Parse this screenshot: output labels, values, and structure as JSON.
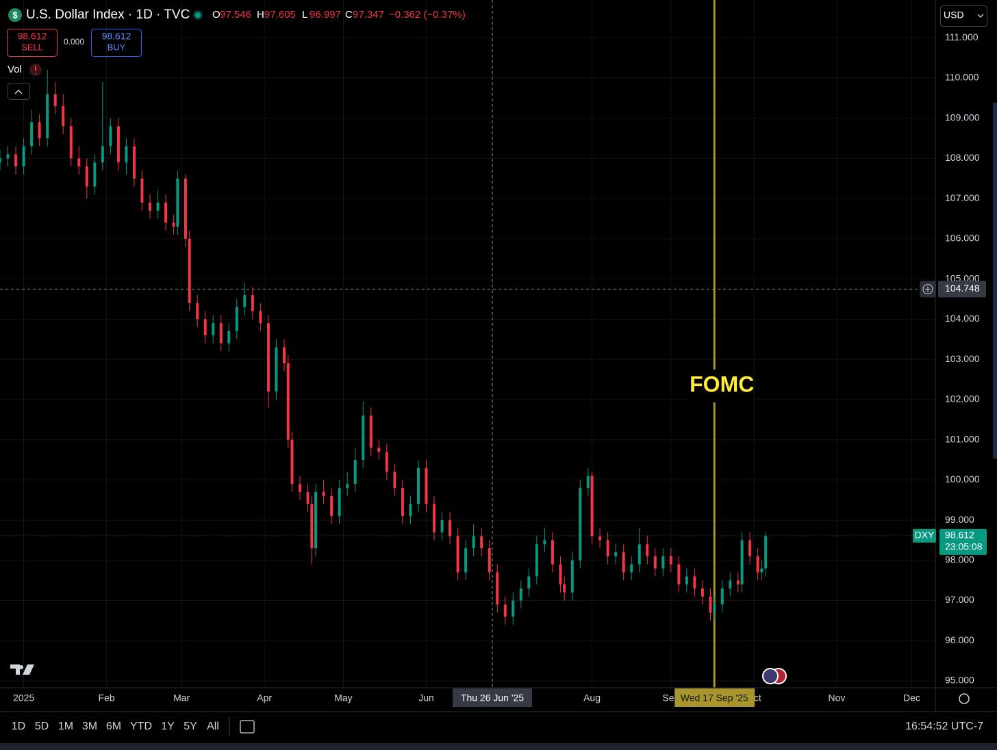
{
  "chart_data": {
    "type": "candlestick",
    "title": "U.S. Dollar Index · 1D · TVC",
    "symbol_icon": "$",
    "up_color": "#089981",
    "down_color": "#f23645",
    "grid": true,
    "xlim": [
      -6,
      231
    ],
    "ylim": [
      94.83,
      111.94
    ],
    "xticks": [
      {
        "value": 0,
        "label": "2025"
      },
      {
        "value": 21,
        "label": "Feb"
      },
      {
        "value": 40,
        "label": "Mar"
      },
      {
        "value": 61,
        "label": "Apr"
      },
      {
        "value": 81,
        "label": "May"
      },
      {
        "value": 102,
        "label": "Jun"
      },
      {
        "value": 144,
        "label": "Aug"
      },
      {
        "value": 164,
        "label": "Sep"
      },
      {
        "value": 185,
        "label": "Oct"
      },
      {
        "value": 206,
        "label": "Nov"
      },
      {
        "value": 225,
        "label": "Dec"
      }
    ],
    "yticks": [
      {
        "value": 95,
        "label": "95.000"
      },
      {
        "value": 96,
        "label": "96.000"
      },
      {
        "value": 97,
        "label": "97.000"
      },
      {
        "value": 98,
        "label": "98.000"
      },
      {
        "value": 99,
        "label": "99.000"
      },
      {
        "value": 100,
        "label": "100.000"
      },
      {
        "value": 101,
        "label": "101.000"
      },
      {
        "value": 102,
        "label": "102.000"
      },
      {
        "value": 103,
        "label": "103.000"
      },
      {
        "value": 104,
        "label": "104.000"
      },
      {
        "value": 105,
        "label": "105.000"
      },
      {
        "value": 106,
        "label": "106.000"
      },
      {
        "value": 107,
        "label": "107.000"
      },
      {
        "value": 108,
        "label": "108.000"
      },
      {
        "value": 109,
        "label": "109.000"
      },
      {
        "value": 110,
        "label": "110.000"
      },
      {
        "value": 111,
        "label": "111.000"
      }
    ],
    "x": [
      -6,
      -4,
      -2,
      0,
      2,
      4,
      6,
      8,
      10,
      12,
      14,
      16,
      18,
      20,
      22,
      24,
      26,
      28,
      30,
      32,
      34,
      36,
      38,
      39,
      41,
      42,
      44,
      46,
      48,
      50,
      52,
      54,
      56,
      58,
      60,
      62,
      64,
      66,
      67,
      68,
      70,
      72,
      73,
      74,
      76,
      78,
      80,
      82,
      84,
      86,
      88,
      90,
      92,
      94,
      96,
      98,
      100,
      102,
      104,
      106,
      108,
      110,
      112,
      114,
      116,
      118,
      120,
      122,
      124,
      126,
      128,
      130,
      132,
      134,
      136,
      137,
      139,
      141,
      143,
      144,
      146,
      148,
      150,
      152,
      154,
      156,
      158,
      160,
      162,
      164,
      166,
      168,
      170,
      172,
      174,
      175,
      177,
      179,
      181,
      182,
      184,
      186,
      187,
      188
    ],
    "open": [
      107.9,
      108.0,
      108.1,
      107.8,
      108.3,
      108.9,
      108.5,
      109.6,
      109.3,
      108.8,
      108.0,
      107.8,
      107.3,
      107.9,
      108.3,
      108.8,
      107.9,
      108.3,
      107.5,
      106.9,
      106.7,
      106.9,
      106.4,
      106.3,
      107.5,
      106.0,
      104.4,
      104.0,
      103.6,
      103.9,
      103.4,
      103.7,
      104.3,
      104.6,
      104.2,
      103.9,
      102.2,
      103.3,
      102.9,
      101.0,
      99.9,
      99.7,
      99.4,
      98.3,
      99.7,
      99.6,
      99.1,
      99.8,
      99.9,
      100.5,
      101.6,
      100.8,
      100.7,
      100.2,
      99.8,
      99.1,
      99.4,
      100.3,
      99.4,
      98.7,
      99.0,
      98.6,
      97.7,
      98.3,
      98.6,
      98.3,
      97.7,
      96.9,
      96.6,
      97.0,
      97.3,
      97.6,
      98.4,
      98.5,
      97.9,
      97.4,
      97.2,
      98.0,
      99.8,
      100.1,
      98.6,
      98.5,
      98.1,
      98.2,
      97.7,
      97.9,
      98.4,
      98.1,
      97.8,
      98.1,
      97.9,
      97.4,
      97.6,
      97.3,
      97.1,
      96.7,
      96.9,
      97.3,
      97.5,
      97.4,
      98.5,
      98.1,
      97.7,
      97.8
    ],
    "high": [
      108.2,
      108.3,
      108.3,
      108.5,
      109.2,
      109.1,
      110.2,
      109.9,
      109.6,
      109.0,
      108.3,
      108.0,
      108.1,
      109.9,
      109.0,
      109.0,
      108.5,
      108.5,
      107.7,
      107.1,
      107.2,
      107.1,
      106.6,
      107.7,
      107.6,
      106.2,
      104.6,
      104.2,
      104.1,
      104.1,
      103.9,
      104.5,
      104.9,
      104.8,
      104.4,
      104.1,
      103.5,
      103.5,
      103.1,
      101.2,
      100.1,
      99.9,
      99.6,
      99.9,
      100.0,
      99.8,
      100.0,
      100.2,
      100.8,
      101.95,
      101.8,
      101.0,
      100.9,
      100.4,
      100.0,
      99.6,
      100.5,
      100.5,
      99.6,
      99.2,
      99.2,
      98.8,
      98.5,
      98.9,
      98.8,
      98.5,
      97.9,
      97.1,
      97.2,
      97.5,
      97.8,
      98.6,
      98.8,
      98.7,
      98.1,
      97.6,
      98.2,
      100.0,
      100.3,
      100.2,
      98.8,
      98.7,
      98.4,
      98.4,
      98.1,
      98.8,
      98.6,
      98.3,
      98.3,
      98.3,
      98.1,
      97.8,
      97.8,
      97.5,
      97.3,
      97.1,
      97.5,
      97.7,
      97.7,
      98.7,
      98.7,
      98.3,
      98.0,
      98.7
    ],
    "low": [
      107.7,
      107.8,
      107.6,
      107.6,
      108.1,
      108.3,
      108.3,
      109.1,
      108.6,
      107.8,
      107.6,
      107.0,
      107.1,
      107.7,
      108.1,
      107.7,
      107.6,
      107.3,
      106.7,
      106.5,
      106.5,
      106.2,
      106.1,
      106.1,
      105.8,
      104.2,
      103.8,
      103.4,
      103.4,
      103.2,
      103.2,
      103.5,
      104.1,
      104.0,
      103.7,
      101.8,
      102.0,
      102.7,
      100.8,
      99.7,
      99.5,
      99.2,
      97.9,
      98.1,
      99.4,
      98.9,
      98.9,
      99.6,
      99.7,
      100.3,
      100.6,
      100.5,
      100.0,
      99.6,
      98.9,
      98.9,
      99.2,
      99.2,
      98.5,
      98.5,
      98.4,
      97.5,
      97.5,
      98.1,
      98.1,
      97.5,
      96.7,
      96.4,
      96.4,
      96.8,
      97.1,
      97.4,
      98.2,
      97.7,
      97.2,
      97.0,
      97.0,
      97.8,
      99.6,
      98.4,
      98.3,
      97.9,
      97.9,
      97.5,
      97.5,
      97.7,
      97.9,
      97.6,
      97.6,
      97.7,
      97.2,
      97.2,
      97.1,
      96.9,
      96.5,
      96.5,
      96.7,
      97.1,
      97.2,
      97.2,
      97.9,
      97.5,
      97.5,
      97.6
    ],
    "close": [
      108.0,
      108.1,
      107.8,
      108.3,
      108.9,
      108.5,
      109.6,
      109.3,
      108.8,
      108.0,
      107.8,
      107.3,
      107.9,
      108.3,
      108.8,
      107.9,
      108.3,
      107.5,
      106.9,
      106.7,
      106.9,
      106.4,
      106.3,
      107.5,
      106.0,
      104.4,
      104.0,
      103.6,
      103.9,
      103.4,
      103.7,
      104.3,
      104.6,
      104.2,
      103.9,
      102.2,
      103.3,
      102.9,
      101.0,
      99.9,
      99.7,
      99.4,
      98.3,
      99.7,
      99.6,
      99.1,
      99.8,
      99.9,
      100.5,
      101.6,
      100.8,
      100.7,
      100.2,
      99.8,
      99.1,
      99.4,
      100.3,
      99.4,
      98.7,
      99.0,
      98.6,
      97.7,
      98.3,
      98.6,
      98.3,
      97.7,
      96.9,
      96.6,
      97.0,
      97.3,
      97.6,
      98.4,
      98.5,
      97.9,
      97.4,
      97.2,
      98.0,
      99.8,
      100.1,
      98.6,
      98.5,
      98.1,
      98.2,
      97.7,
      97.9,
      98.4,
      98.1,
      97.8,
      98.1,
      97.9,
      97.4,
      97.6,
      97.3,
      97.1,
      96.7,
      96.9,
      97.3,
      97.5,
      97.4,
      98.5,
      98.1,
      97.7,
      97.8,
      98.6
    ],
    "crosshair": {
      "x": 118.75,
      "y": 104.748,
      "x_label": "Thu 26 Jun '25"
    },
    "event": {
      "x": 175,
      "label": "FOMC",
      "date_label": "Wed 17 Sep '25",
      "color": "#a8962c"
    },
    "last_price": {
      "value": 98.612,
      "symbol": "DXY",
      "countdown": "23:05:08"
    }
  },
  "ui": {
    "ohlc": [
      {
        "key": "O",
        "value": 97.546
      },
      {
        "key": "H",
        "value": 97.605
      },
      {
        "key": "L",
        "value": 96.997
      },
      {
        "key": "C",
        "value": 97.347
      }
    ],
    "change": "−0.362 (−0.37%)",
    "sell": {
      "price": 98.612,
      "label": "SELL"
    },
    "spread": "0.000",
    "buy": {
      "price": 98.612,
      "label": "BUY"
    },
    "volume_label": "Vol",
    "currency": "USD",
    "timeframes": [
      "1D",
      "5D",
      "1M",
      "3M",
      "6M",
      "YTD",
      "1Y",
      "5Y",
      "All"
    ],
    "clock": "16:54:52 UTC-7"
  }
}
